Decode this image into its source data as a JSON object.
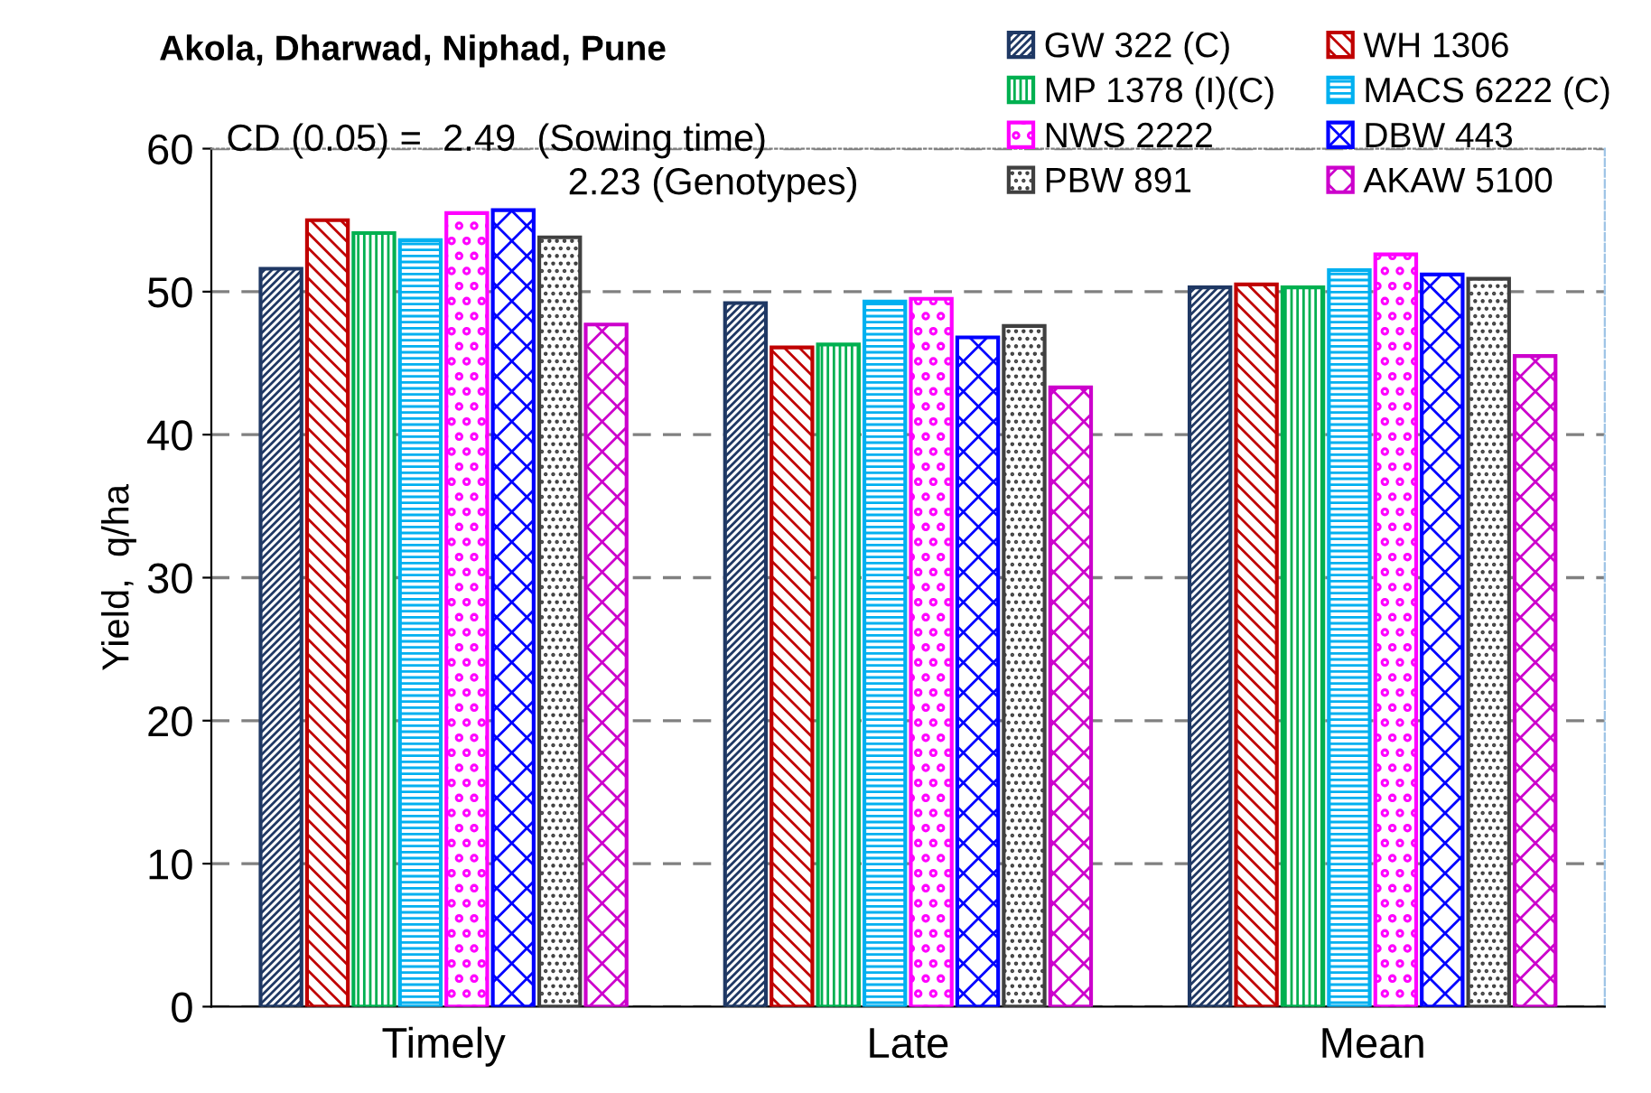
{
  "chart_data": {
    "type": "bar",
    "title": "Akola, Dharwad, Niphad, Pune",
    "ylabel": "Yield,  q/ha",
    "categories": [
      "Timely",
      "Late",
      "Mean"
    ],
    "series": [
      {
        "name": "GW 322 (C)",
        "color": "#1f3864",
        "values": [
          51.6,
          49.2,
          50.3
        ]
      },
      {
        "name": "WH 1306",
        "color": "#c00000",
        "values": [
          55.0,
          46.1,
          50.5
        ]
      },
      {
        "name": "MP 1378 (I)(C)",
        "color": "#00b050",
        "values": [
          54.1,
          46.3,
          50.3
        ]
      },
      {
        "name": "MACS 6222 (C)",
        "color": "#00b0f0",
        "values": [
          53.6,
          49.3,
          51.5
        ]
      },
      {
        "name": "NWS 2222",
        "color": "#ff00ff",
        "values": [
          55.5,
          49.5,
          52.6
        ]
      },
      {
        "name": "DBW 443",
        "color": "#0000ff",
        "values": [
          55.7,
          46.8,
          51.2
        ]
      },
      {
        "name": "PBW 891",
        "color": "#404040",
        "values": [
          53.8,
          47.6,
          50.9
        ]
      },
      {
        "name": "AKAW 5100",
        "color": "#cc00cc",
        "values": [
          47.7,
          43.3,
          45.5
        ]
      }
    ],
    "annotations": [
      "CD (0.05) =  2.49  (Sowing time)",
      "2.23 (Genotypes)"
    ],
    "ylim": [
      0,
      60
    ],
    "yticks": [
      0,
      10,
      20,
      30,
      40,
      50,
      60
    ],
    "grid": "y",
    "legend": "top right"
  }
}
